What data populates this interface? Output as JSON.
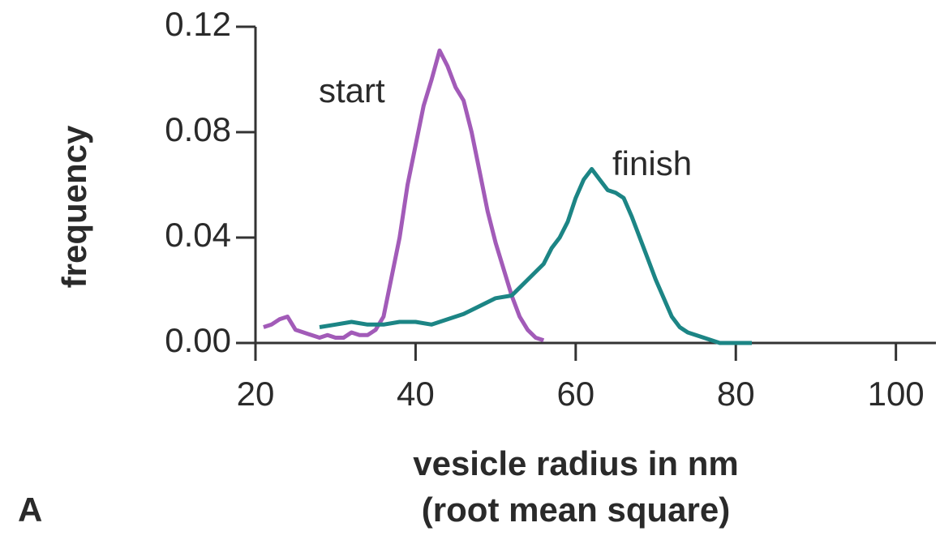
{
  "chart_data": {
    "type": "line",
    "xlabel": "vesicle radius in nm",
    "xlabel2": "(root mean square)",
    "ylabel": "frequency",
    "panel_label": "A",
    "xlim": [
      20,
      105
    ],
    "ylim": [
      0,
      0.12
    ],
    "xticks": [
      20,
      40,
      60,
      80,
      100
    ],
    "yticks": [
      {
        "value": 0,
        "label": "0.00"
      },
      0.04,
      0.08,
      0.12
    ],
    "series": [
      {
        "name": "start",
        "color": "#a25bb8",
        "x": [
          21,
          22,
          23,
          24,
          25,
          26,
          27,
          28,
          29,
          30,
          31,
          32,
          33,
          34,
          35,
          36,
          37,
          38,
          39,
          40,
          41,
          42,
          43,
          44,
          45,
          46,
          47,
          48,
          49,
          50,
          51,
          52,
          53,
          54,
          55,
          56
        ],
        "values": [
          0.006,
          0.007,
          0.009,
          0.01,
          0.005,
          0.004,
          0.003,
          0.002,
          0.003,
          0.002,
          0.002,
          0.004,
          0.003,
          0.003,
          0.005,
          0.01,
          0.025,
          0.04,
          0.06,
          0.075,
          0.09,
          0.1,
          0.111,
          0.105,
          0.097,
          0.092,
          0.08,
          0.065,
          0.05,
          0.038,
          0.028,
          0.018,
          0.01,
          0.005,
          0.002,
          0.001
        ]
      },
      {
        "name": "finish",
        "color": "#1c8585",
        "x": [
          28,
          30,
          32,
          34,
          36,
          38,
          40,
          42,
          44,
          46,
          48,
          50,
          52,
          54,
          56,
          57,
          58,
          59,
          60,
          61,
          62,
          63,
          64,
          65,
          66,
          67,
          68,
          69,
          70,
          71,
          72,
          73,
          74,
          75,
          76,
          77,
          78,
          80,
          82
        ],
        "values": [
          0.006,
          0.007,
          0.008,
          0.007,
          0.007,
          0.008,
          0.008,
          0.007,
          0.009,
          0.011,
          0.014,
          0.017,
          0.018,
          0.024,
          0.03,
          0.036,
          0.04,
          0.046,
          0.055,
          0.062,
          0.066,
          0.062,
          0.058,
          0.057,
          0.055,
          0.048,
          0.04,
          0.032,
          0.024,
          0.017,
          0.01,
          0.006,
          0.004,
          0.003,
          0.002,
          0.001,
          0,
          0,
          0
        ]
      }
    ]
  }
}
